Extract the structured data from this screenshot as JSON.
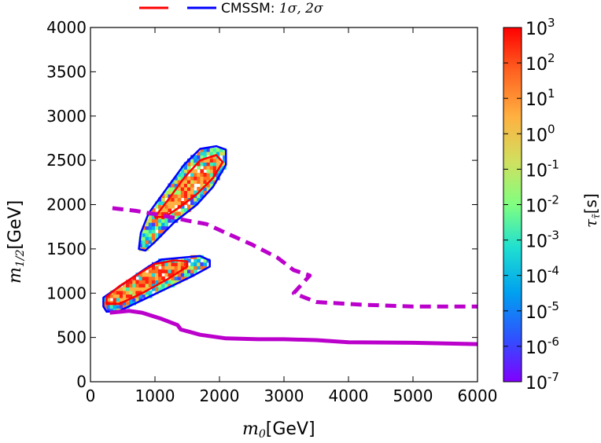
{
  "chart_data": {
    "type": "heatmap",
    "title": "",
    "xlabel": {
      "symbol": "m",
      "sub": "0",
      "unit": "[GeV]"
    },
    "ylabel": {
      "symbol": "m",
      "sub": "1/2",
      "unit": "[GeV]"
    },
    "xlim": [
      0,
      6000
    ],
    "ylim": [
      0,
      4000
    ],
    "x_ticks": [
      "0",
      "1000",
      "2000",
      "3000",
      "4000",
      "5000",
      "6000"
    ],
    "y_ticks": [
      "0",
      "500",
      "1000",
      "1500",
      "2000",
      "2500",
      "3000",
      "3500",
      "4000"
    ],
    "legend": {
      "placement": "top",
      "label_prefix": "CMSSM: ",
      "label_math": "1σ, 2σ",
      "entries": [
        {
          "line": "1σ",
          "color": "#ff0000"
        },
        {
          "line": "2σ",
          "color": "#0000ff"
        }
      ]
    },
    "colorbar": {
      "label_symbol": "τ",
      "label_sub": "τ̃",
      "label_unit": "[s]",
      "scale": "log",
      "range": [
        1e-07,
        1000.0
      ],
      "ticks": [
        {
          "base": "10",
          "exp": "3"
        },
        {
          "base": "10",
          "exp": "2"
        },
        {
          "base": "10",
          "exp": "1"
        },
        {
          "base": "10",
          "exp": "0"
        },
        {
          "base": "10",
          "exp": "-1"
        },
        {
          "base": "10",
          "exp": "-2"
        },
        {
          "base": "10",
          "exp": "-3"
        },
        {
          "base": "10",
          "exp": "-4"
        },
        {
          "base": "10",
          "exp": "-5"
        },
        {
          "base": "10",
          "exp": "-6"
        },
        {
          "base": "10",
          "exp": "-7"
        }
      ]
    },
    "series": [
      {
        "style": "dashed",
        "color": "#bb00cc",
        "points": [
          [
            340,
            1960
          ],
          [
            700,
            1930
          ],
          [
            1100,
            1880
          ],
          [
            1500,
            1820
          ],
          [
            1800,
            1780
          ],
          [
            2100,
            1680
          ],
          [
            2500,
            1550
          ],
          [
            2900,
            1400
          ],
          [
            3150,
            1260
          ],
          [
            3400,
            1200
          ],
          [
            3150,
            1000
          ],
          [
            3500,
            900
          ],
          [
            4200,
            870
          ],
          [
            5000,
            850
          ],
          [
            6000,
            850
          ]
        ]
      },
      {
        "style": "solid",
        "color": "#bb00cc",
        "points": [
          [
            300,
            780
          ],
          [
            600,
            800
          ],
          [
            800,
            780
          ],
          [
            1100,
            710
          ],
          [
            1350,
            640
          ],
          [
            1400,
            590
          ],
          [
            1500,
            570
          ],
          [
            1700,
            530
          ],
          [
            2100,
            490
          ],
          [
            2600,
            480
          ],
          [
            3000,
            480
          ],
          [
            3500,
            470
          ],
          [
            4000,
            445
          ],
          [
            5000,
            440
          ],
          [
            6000,
            425
          ]
        ]
      }
    ],
    "regions": [
      {
        "name": "lower-island",
        "contour_2sigma": [
          [
            200,
            850
          ],
          [
            200,
            950
          ],
          [
            300,
            1000
          ],
          [
            600,
            1150
          ],
          [
            900,
            1300
          ],
          [
            1100,
            1380
          ],
          [
            1400,
            1400
          ],
          [
            1700,
            1420
          ],
          [
            1850,
            1370
          ],
          [
            1850,
            1300
          ],
          [
            1600,
            1200
          ],
          [
            1200,
            1060
          ],
          [
            800,
            920
          ],
          [
            450,
            800
          ],
          [
            250,
            790
          ]
        ],
        "contour_1sigma": [
          [
            250,
            880
          ],
          [
            250,
            960
          ],
          [
            450,
            1080
          ],
          [
            750,
            1220
          ],
          [
            1000,
            1330
          ],
          [
            1300,
            1370
          ],
          [
            1500,
            1360
          ],
          [
            1500,
            1300
          ],
          [
            1200,
            1160
          ],
          [
            800,
            1000
          ],
          [
            450,
            880
          ]
        ]
      },
      {
        "name": "upper-island",
        "contour_2sigma": [
          [
            750,
            1500
          ],
          [
            780,
            1680
          ],
          [
            900,
            1900
          ],
          [
            1200,
            2200
          ],
          [
            1450,
            2450
          ],
          [
            1700,
            2630
          ],
          [
            1950,
            2660
          ],
          [
            2100,
            2620
          ],
          [
            2100,
            2450
          ],
          [
            1900,
            2200
          ],
          [
            1650,
            2000
          ],
          [
            1300,
            1800
          ],
          [
            1000,
            1580
          ],
          [
            850,
            1480
          ]
        ],
        "contour_1sigma": [
          [
            1000,
            1860
          ],
          [
            1200,
            2050
          ],
          [
            1450,
            2300
          ],
          [
            1700,
            2500
          ],
          [
            1950,
            2560
          ],
          [
            2050,
            2480
          ],
          [
            1900,
            2300
          ],
          [
            1650,
            2120
          ],
          [
            1400,
            1980
          ],
          [
            1150,
            1860
          ]
        ]
      }
    ]
  }
}
